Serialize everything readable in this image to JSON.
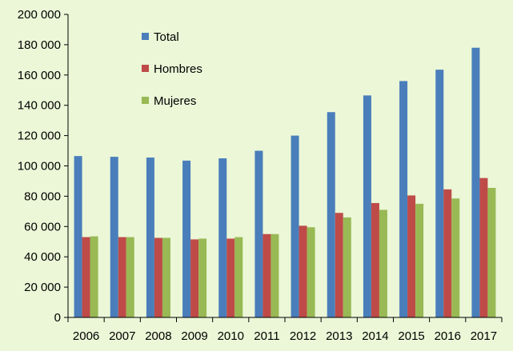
{
  "chart_data": {
    "type": "bar",
    "categories": [
      "2006",
      "2007",
      "2008",
      "2009",
      "2010",
      "2011",
      "2012",
      "2013",
      "2014",
      "2015",
      "2016",
      "2017"
    ],
    "series": [
      {
        "name": "Total",
        "color": "#4a7ebb",
        "values": [
          106500,
          106000,
          105500,
          103500,
          105000,
          110000,
          120000,
          135500,
          146500,
          156000,
          163500,
          178000
        ]
      },
      {
        "name": "Hombres",
        "color": "#be4b48",
        "values": [
          53000,
          53000,
          52500,
          51500,
          52000,
          55000,
          60500,
          69000,
          75500,
          80500,
          84500,
          92000
        ]
      },
      {
        "name": "Mujeres",
        "color": "#98b954",
        "values": [
          53500,
          53000,
          52500,
          52000,
          53000,
          55000,
          59500,
          66000,
          71000,
          75000,
          78500,
          85500
        ]
      }
    ],
    "ylim": [
      0,
      200000
    ],
    "yticks": [
      {
        "value": 0,
        "label": "0"
      },
      {
        "value": 20000,
        "label": "20 000"
      },
      {
        "value": 40000,
        "label": "40 000"
      },
      {
        "value": 60000,
        "label": "60 000"
      },
      {
        "value": 80000,
        "label": "80 000"
      },
      {
        "value": 100000,
        "label": "100 000"
      },
      {
        "value": 120000,
        "label": "120 000"
      },
      {
        "value": 140000,
        "label": "140 000"
      },
      {
        "value": 160000,
        "label": "160 000"
      },
      {
        "value": 180000,
        "label": "180 000"
      },
      {
        "value": 200000,
        "label": "200 000"
      }
    ],
    "grid": false,
    "legend": "top-left inside plot",
    "background_color": "#ebf7d7",
    "axis_color": "#000000"
  }
}
